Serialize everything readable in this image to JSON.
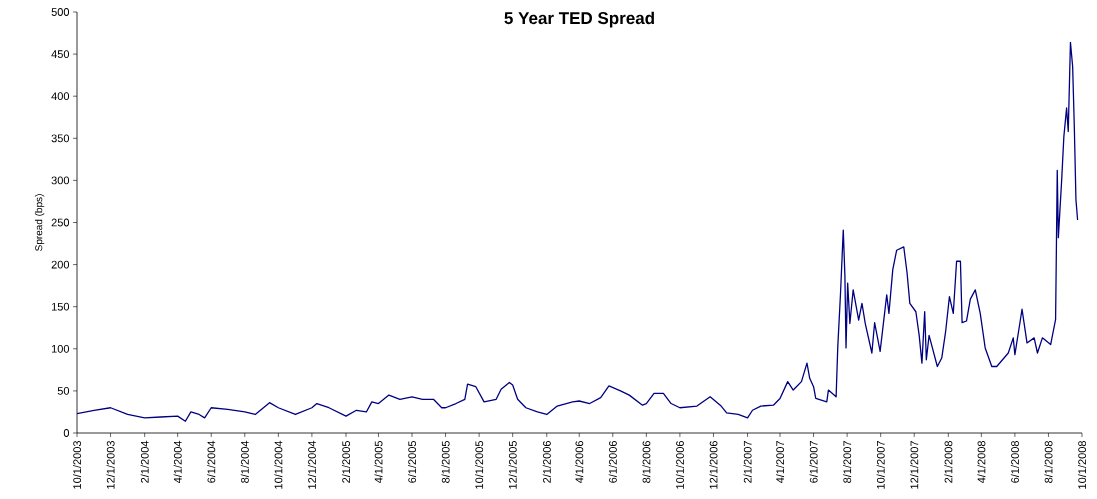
{
  "chart_data": {
    "type": "line",
    "title": "5 Year TED Spread",
    "ylabel": "Spread (bps)",
    "x": [
      "2003-10-01",
      "2003-11-01",
      "2003-12-01",
      "2004-01-01",
      "2004-02-01",
      "2004-03-01",
      "2004-04-01",
      "2004-04-15",
      "2004-04-25",
      "2004-05-10",
      "2004-05-20",
      "2004-06-01",
      "2004-07-01",
      "2004-08-01",
      "2004-08-20",
      "2004-09-15",
      "2004-10-01",
      "2004-11-01",
      "2004-12-01",
      "2004-12-10",
      "2005-01-01",
      "2005-02-01",
      "2005-02-20",
      "2005-03-10",
      "2005-03-20",
      "2005-04-01",
      "2005-04-20",
      "2005-05-10",
      "2005-06-01",
      "2005-06-20",
      "2005-07-10",
      "2005-07-25",
      "2005-08-01",
      "2005-08-20",
      "2005-09-05",
      "2005-09-10",
      "2005-09-25",
      "2005-10-10",
      "2005-11-01",
      "2005-11-10",
      "2005-11-25",
      "2005-12-01",
      "2005-12-10",
      "2005-12-25",
      "2006-01-15",
      "2006-02-01",
      "2006-02-20",
      "2006-03-20",
      "2006-04-01",
      "2006-04-20",
      "2006-05-10",
      "2006-05-25",
      "2006-06-15",
      "2006-07-01",
      "2006-07-25",
      "2006-08-01",
      "2006-08-15",
      "2006-09-01",
      "2006-09-15",
      "2006-10-01",
      "2006-11-01",
      "2006-11-25",
      "2006-12-15",
      "2006-12-25",
      "2007-01-15",
      "2007-02-01",
      "2007-02-10",
      "2007-02-25",
      "2007-03-20",
      "2007-04-01",
      "2007-04-15",
      "2007-04-25",
      "2007-05-10",
      "2007-05-20",
      "2007-05-25",
      "2007-06-01",
      "2007-06-05",
      "2007-06-25",
      "2007-06-28",
      "2007-07-12",
      "2007-07-15",
      "2007-07-20",
      "2007-07-25",
      "2007-07-28",
      "2007-07-30",
      "2007-08-02",
      "2007-08-06",
      "2007-08-12",
      "2007-08-22",
      "2007-08-28",
      "2007-09-03",
      "2007-09-15",
      "2007-09-20",
      "2007-09-30",
      "2007-10-12",
      "2007-10-16",
      "2007-10-23",
      "2007-10-30",
      "2007-11-12",
      "2007-11-18",
      "2007-11-23",
      "2007-12-04",
      "2007-12-10",
      "2007-12-15",
      "2007-12-20",
      "2007-12-23",
      "2007-12-28",
      "2008-01-12",
      "2008-01-20",
      "2008-01-27",
      "2008-02-03",
      "2008-02-10",
      "2008-02-16",
      "2008-02-23",
      "2008-02-26",
      "2008-03-05",
      "2008-03-12",
      "2008-03-21",
      "2008-03-30",
      "2008-04-08",
      "2008-04-20",
      "2008-04-29",
      "2008-05-20",
      "2008-05-29",
      "2008-06-01",
      "2008-06-14",
      "2008-06-23",
      "2008-07-06",
      "2008-07-12",
      "2008-07-21",
      "2008-08-05",
      "2008-08-14",
      "2008-08-17",
      "2008-08-19",
      "2008-08-25",
      "2008-08-29",
      "2008-09-03",
      "2008-09-06",
      "2008-09-10",
      "2008-09-14",
      "2008-09-17",
      "2008-09-20",
      "2008-09-23"
    ],
    "series": [
      {
        "color": "#000080",
        "values": [
          23,
          27,
          30,
          22,
          18,
          19,
          20,
          14,
          25,
          22,
          18,
          30,
          28,
          25,
          22,
          36,
          30,
          22,
          30,
          35,
          30,
          20,
          27,
          25,
          37,
          35,
          45,
          40,
          43,
          40,
          40,
          30,
          30,
          35,
          40,
          58,
          55,
          37,
          40,
          52,
          60,
          57,
          40,
          30,
          25,
          22,
          32,
          37,
          38,
          35,
          42,
          56,
          50,
          45,
          33,
          35,
          47,
          47,
          35,
          30,
          32,
          43,
          32,
          24,
          22,
          18,
          27,
          32,
          33,
          41,
          61,
          51,
          61,
          83,
          65,
          55,
          41,
          37,
          51,
          43,
          102,
          166,
          241,
          186,
          101,
          178,
          130,
          170,
          134,
          154,
          130,
          95,
          131,
          97,
          164,
          142,
          194,
          217,
          221,
          190,
          154,
          144,
          116,
          83,
          144,
          87,
          116,
          79,
          89,
          120,
          162,
          142,
          204,
          204,
          131,
          133,
          159,
          170,
          142,
          101,
          79,
          79,
          95,
          113,
          93,
          147,
          107,
          113,
          95,
          113,
          105,
          135,
          312,
          232,
          300,
          352,
          386,
          358,
          464,
          435,
          364,
          277,
          253
        ]
      }
    ],
    "xlim": [
      "2003-10-01",
      "2008-10-01"
    ],
    "xticks": [
      {
        "value": "2003-10-01",
        "label": "10/1/2003"
      },
      {
        "value": "2003-12-01",
        "label": "12/1/2003"
      },
      {
        "value": "2004-02-01",
        "label": "2/1/2004"
      },
      {
        "value": "2004-04-01",
        "label": "4/1/2004"
      },
      {
        "value": "2004-06-01",
        "label": "6/1/2004"
      },
      {
        "value": "2004-08-01",
        "label": "8/1/2004"
      },
      {
        "value": "2004-10-01",
        "label": "10/1/2004"
      },
      {
        "value": "2004-12-01",
        "label": "12/1/2004"
      },
      {
        "value": "2005-02-01",
        "label": "2/1/2005"
      },
      {
        "value": "2005-04-01",
        "label": "4/1/2005"
      },
      {
        "value": "2005-06-01",
        "label": "6/1/2005"
      },
      {
        "value": "2005-08-01",
        "label": "8/1/2005"
      },
      {
        "value": "2005-10-01",
        "label": "10/1/2005"
      },
      {
        "value": "2005-12-01",
        "label": "12/1/2005"
      },
      {
        "value": "2006-02-01",
        "label": "2/1/2006"
      },
      {
        "value": "2006-04-01",
        "label": "4/1/2006"
      },
      {
        "value": "2006-06-01",
        "label": "6/1/2006"
      },
      {
        "value": "2006-08-01",
        "label": "8/1/2006"
      },
      {
        "value": "2006-10-01",
        "label": "10/1/2006"
      },
      {
        "value": "2006-12-01",
        "label": "12/1/2006"
      },
      {
        "value": "2007-02-01",
        "label": "2/1/2007"
      },
      {
        "value": "2007-04-01",
        "label": "4/1/2007"
      },
      {
        "value": "2007-06-01",
        "label": "6/1/2007"
      },
      {
        "value": "2007-08-01",
        "label": "8/1/2007"
      },
      {
        "value": "2007-10-01",
        "label": "10/1/2007"
      },
      {
        "value": "2007-12-01",
        "label": "12/1/2007"
      },
      {
        "value": "2008-02-01",
        "label": "2/1/2008"
      },
      {
        "value": "2008-04-01",
        "label": "4/1/2008"
      },
      {
        "value": "2008-06-01",
        "label": "6/1/2008"
      },
      {
        "value": "2008-08-01",
        "label": "8/1/2008"
      },
      {
        "value": "2008-10-01",
        "label": "10/1/2008"
      }
    ],
    "ylim": [
      0,
      500
    ],
    "yticks": [
      0,
      50,
      100,
      150,
      200,
      250,
      300,
      350,
      400,
      450,
      500
    ],
    "grid": false,
    "legend": false,
    "marker": "none",
    "line_style": "solid"
  }
}
